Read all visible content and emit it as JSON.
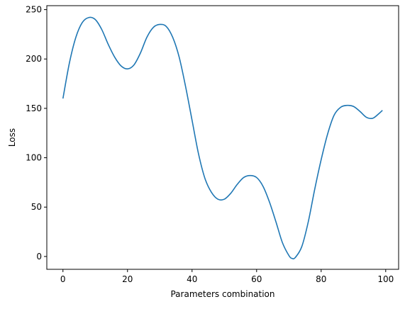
{
  "chart_data": {
    "type": "line",
    "title": "",
    "xlabel": "Parameters combination",
    "ylabel": "Loss",
    "xlim": [
      -5,
      104
    ],
    "ylim": [
      -13,
      254
    ],
    "xticks": [
      0,
      20,
      40,
      60,
      80,
      100
    ],
    "yticks": [
      0,
      50,
      100,
      150,
      200,
      250
    ],
    "grid": false,
    "series": [
      {
        "color": "#1f77b4",
        "points": [
          [
            0,
            160
          ],
          [
            2,
            196
          ],
          [
            4,
            222
          ],
          [
            6,
            237
          ],
          [
            8,
            242
          ],
          [
            10,
            240
          ],
          [
            12,
            230
          ],
          [
            14,
            215
          ],
          [
            16,
            202
          ],
          [
            18,
            193
          ],
          [
            20,
            190
          ],
          [
            22,
            194
          ],
          [
            24,
            206
          ],
          [
            26,
            222
          ],
          [
            28,
            232
          ],
          [
            30,
            235
          ],
          [
            32,
            233
          ],
          [
            34,
            222
          ],
          [
            36,
            202
          ],
          [
            38,
            172
          ],
          [
            40,
            138
          ],
          [
            42,
            104
          ],
          [
            44,
            79
          ],
          [
            46,
            65
          ],
          [
            48,
            58
          ],
          [
            50,
            58
          ],
          [
            52,
            64
          ],
          [
            54,
            73
          ],
          [
            56,
            80
          ],
          [
            58,
            82
          ],
          [
            60,
            80
          ],
          [
            62,
            71
          ],
          [
            64,
            55
          ],
          [
            66,
            35
          ],
          [
            68,
            14
          ],
          [
            70,
            1
          ],
          [
            71,
            -2
          ],
          [
            72,
            -1
          ],
          [
            74,
            10
          ],
          [
            76,
            35
          ],
          [
            78,
            68
          ],
          [
            80,
            98
          ],
          [
            82,
            124
          ],
          [
            84,
            143
          ],
          [
            86,
            151
          ],
          [
            88,
            153
          ],
          [
            90,
            152
          ],
          [
            92,
            147
          ],
          [
            94,
            141
          ],
          [
            96,
            140
          ],
          [
            98,
            145
          ],
          [
            99,
            148
          ]
        ]
      }
    ]
  }
}
